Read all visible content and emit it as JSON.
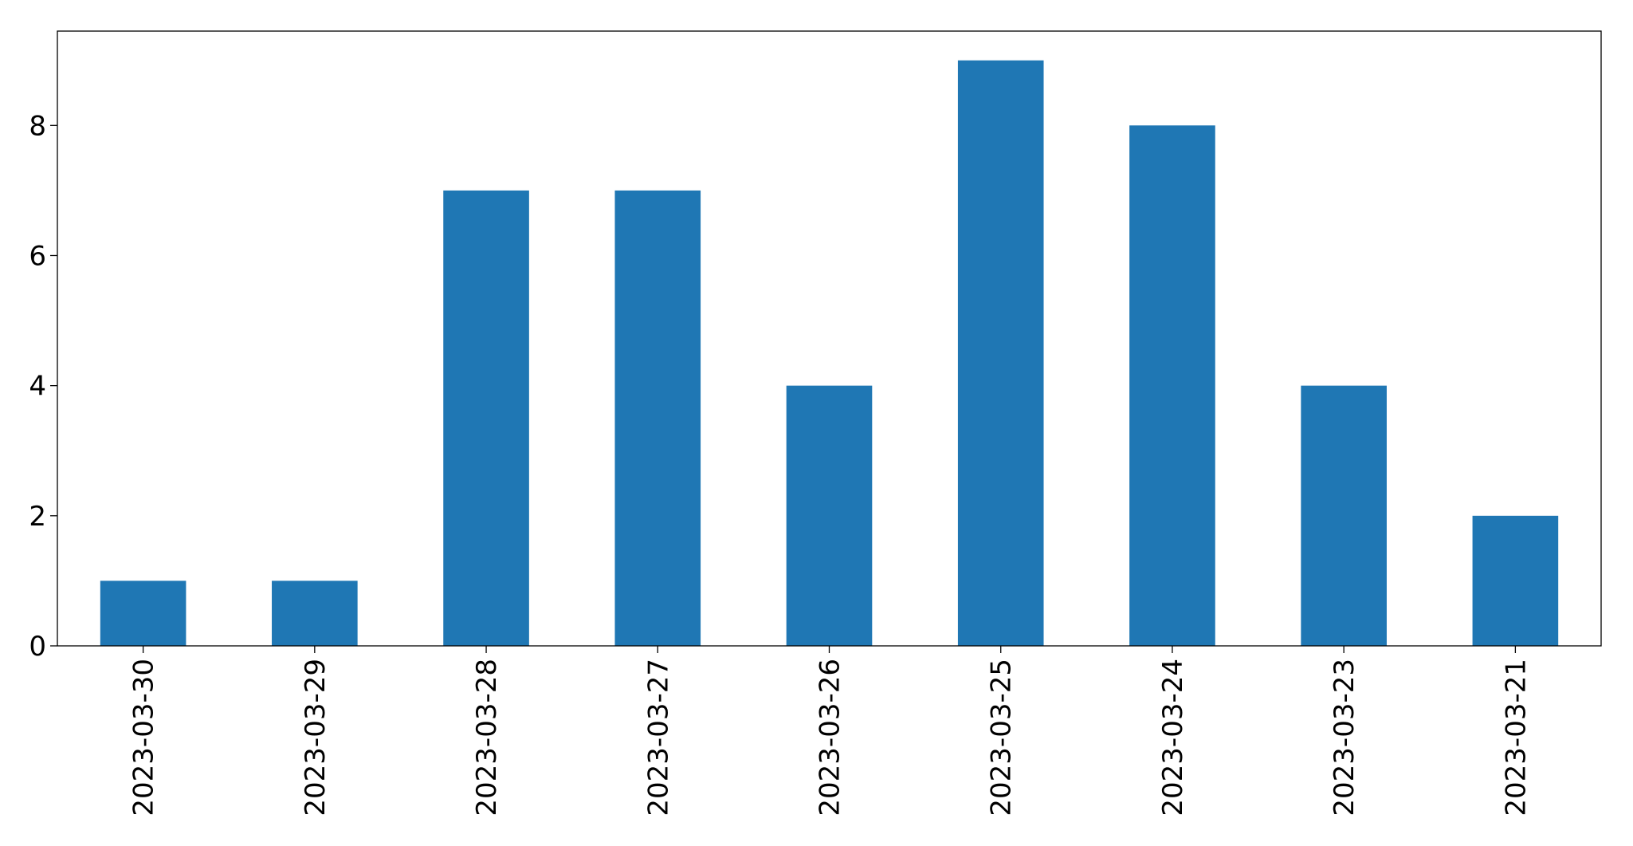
{
  "chart_data": {
    "type": "bar",
    "categories": [
      "2023-03-30",
      "2023-03-29",
      "2023-03-28",
      "2023-03-27",
      "2023-03-26",
      "2023-03-25",
      "2023-03-24",
      "2023-03-23",
      "2023-03-21"
    ],
    "values": [
      1,
      1,
      7,
      7,
      4,
      9,
      8,
      4,
      2
    ],
    "color": "#1f77b4",
    "ylim": [
      0,
      9.45
    ],
    "yticks": [
      0,
      2,
      4,
      6,
      8
    ]
  }
}
